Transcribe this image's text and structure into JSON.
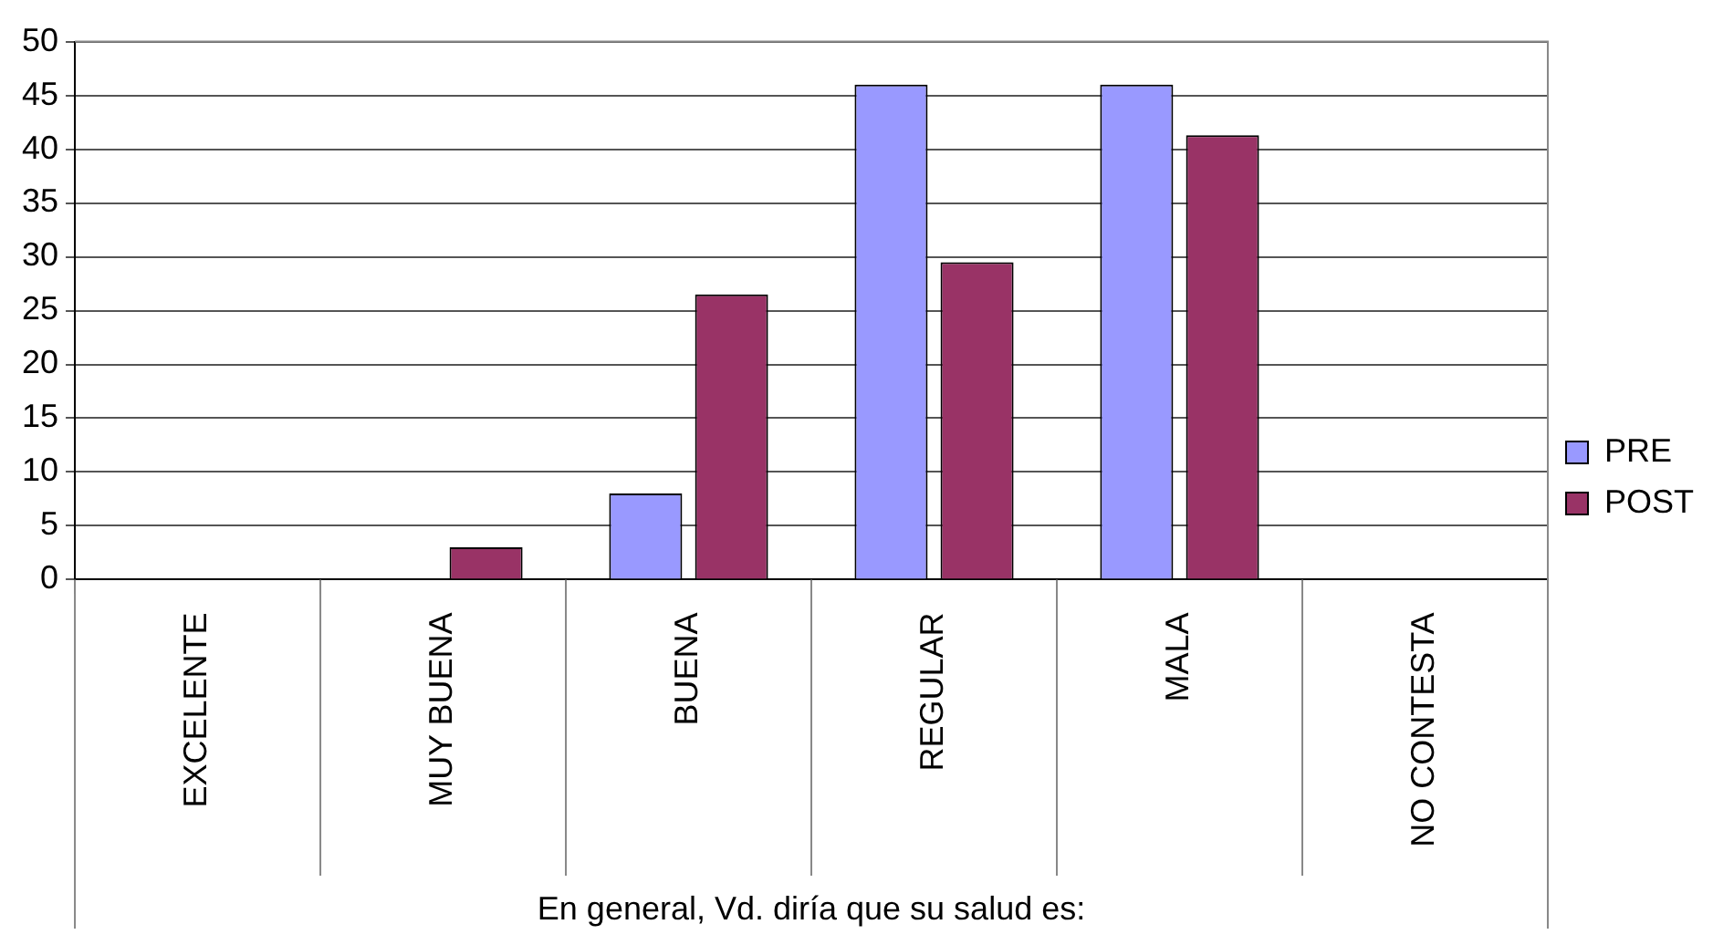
{
  "chart_data": {
    "type": "bar",
    "xlabel": "En general, Vd. diría que su salud es:",
    "categories": [
      "EXCELENTE",
      "MUY BUENA",
      "BUENA",
      "REGULAR",
      "MALA",
      "NO CONTESTA"
    ],
    "series": [
      {
        "name": "PRE",
        "color": "#9999ff",
        "values": [
          0,
          0,
          8,
          46,
          46,
          0
        ]
      },
      {
        "name": "POST",
        "color": "#993366",
        "values": [
          0,
          3,
          26.5,
          29.5,
          41.3,
          0
        ]
      }
    ],
    "ylim": [
      0,
      50
    ],
    "yticks": [
      0,
      5,
      10,
      15,
      20,
      25,
      30,
      35,
      40,
      45,
      50
    ],
    "grid": "y",
    "legend": "right"
  }
}
